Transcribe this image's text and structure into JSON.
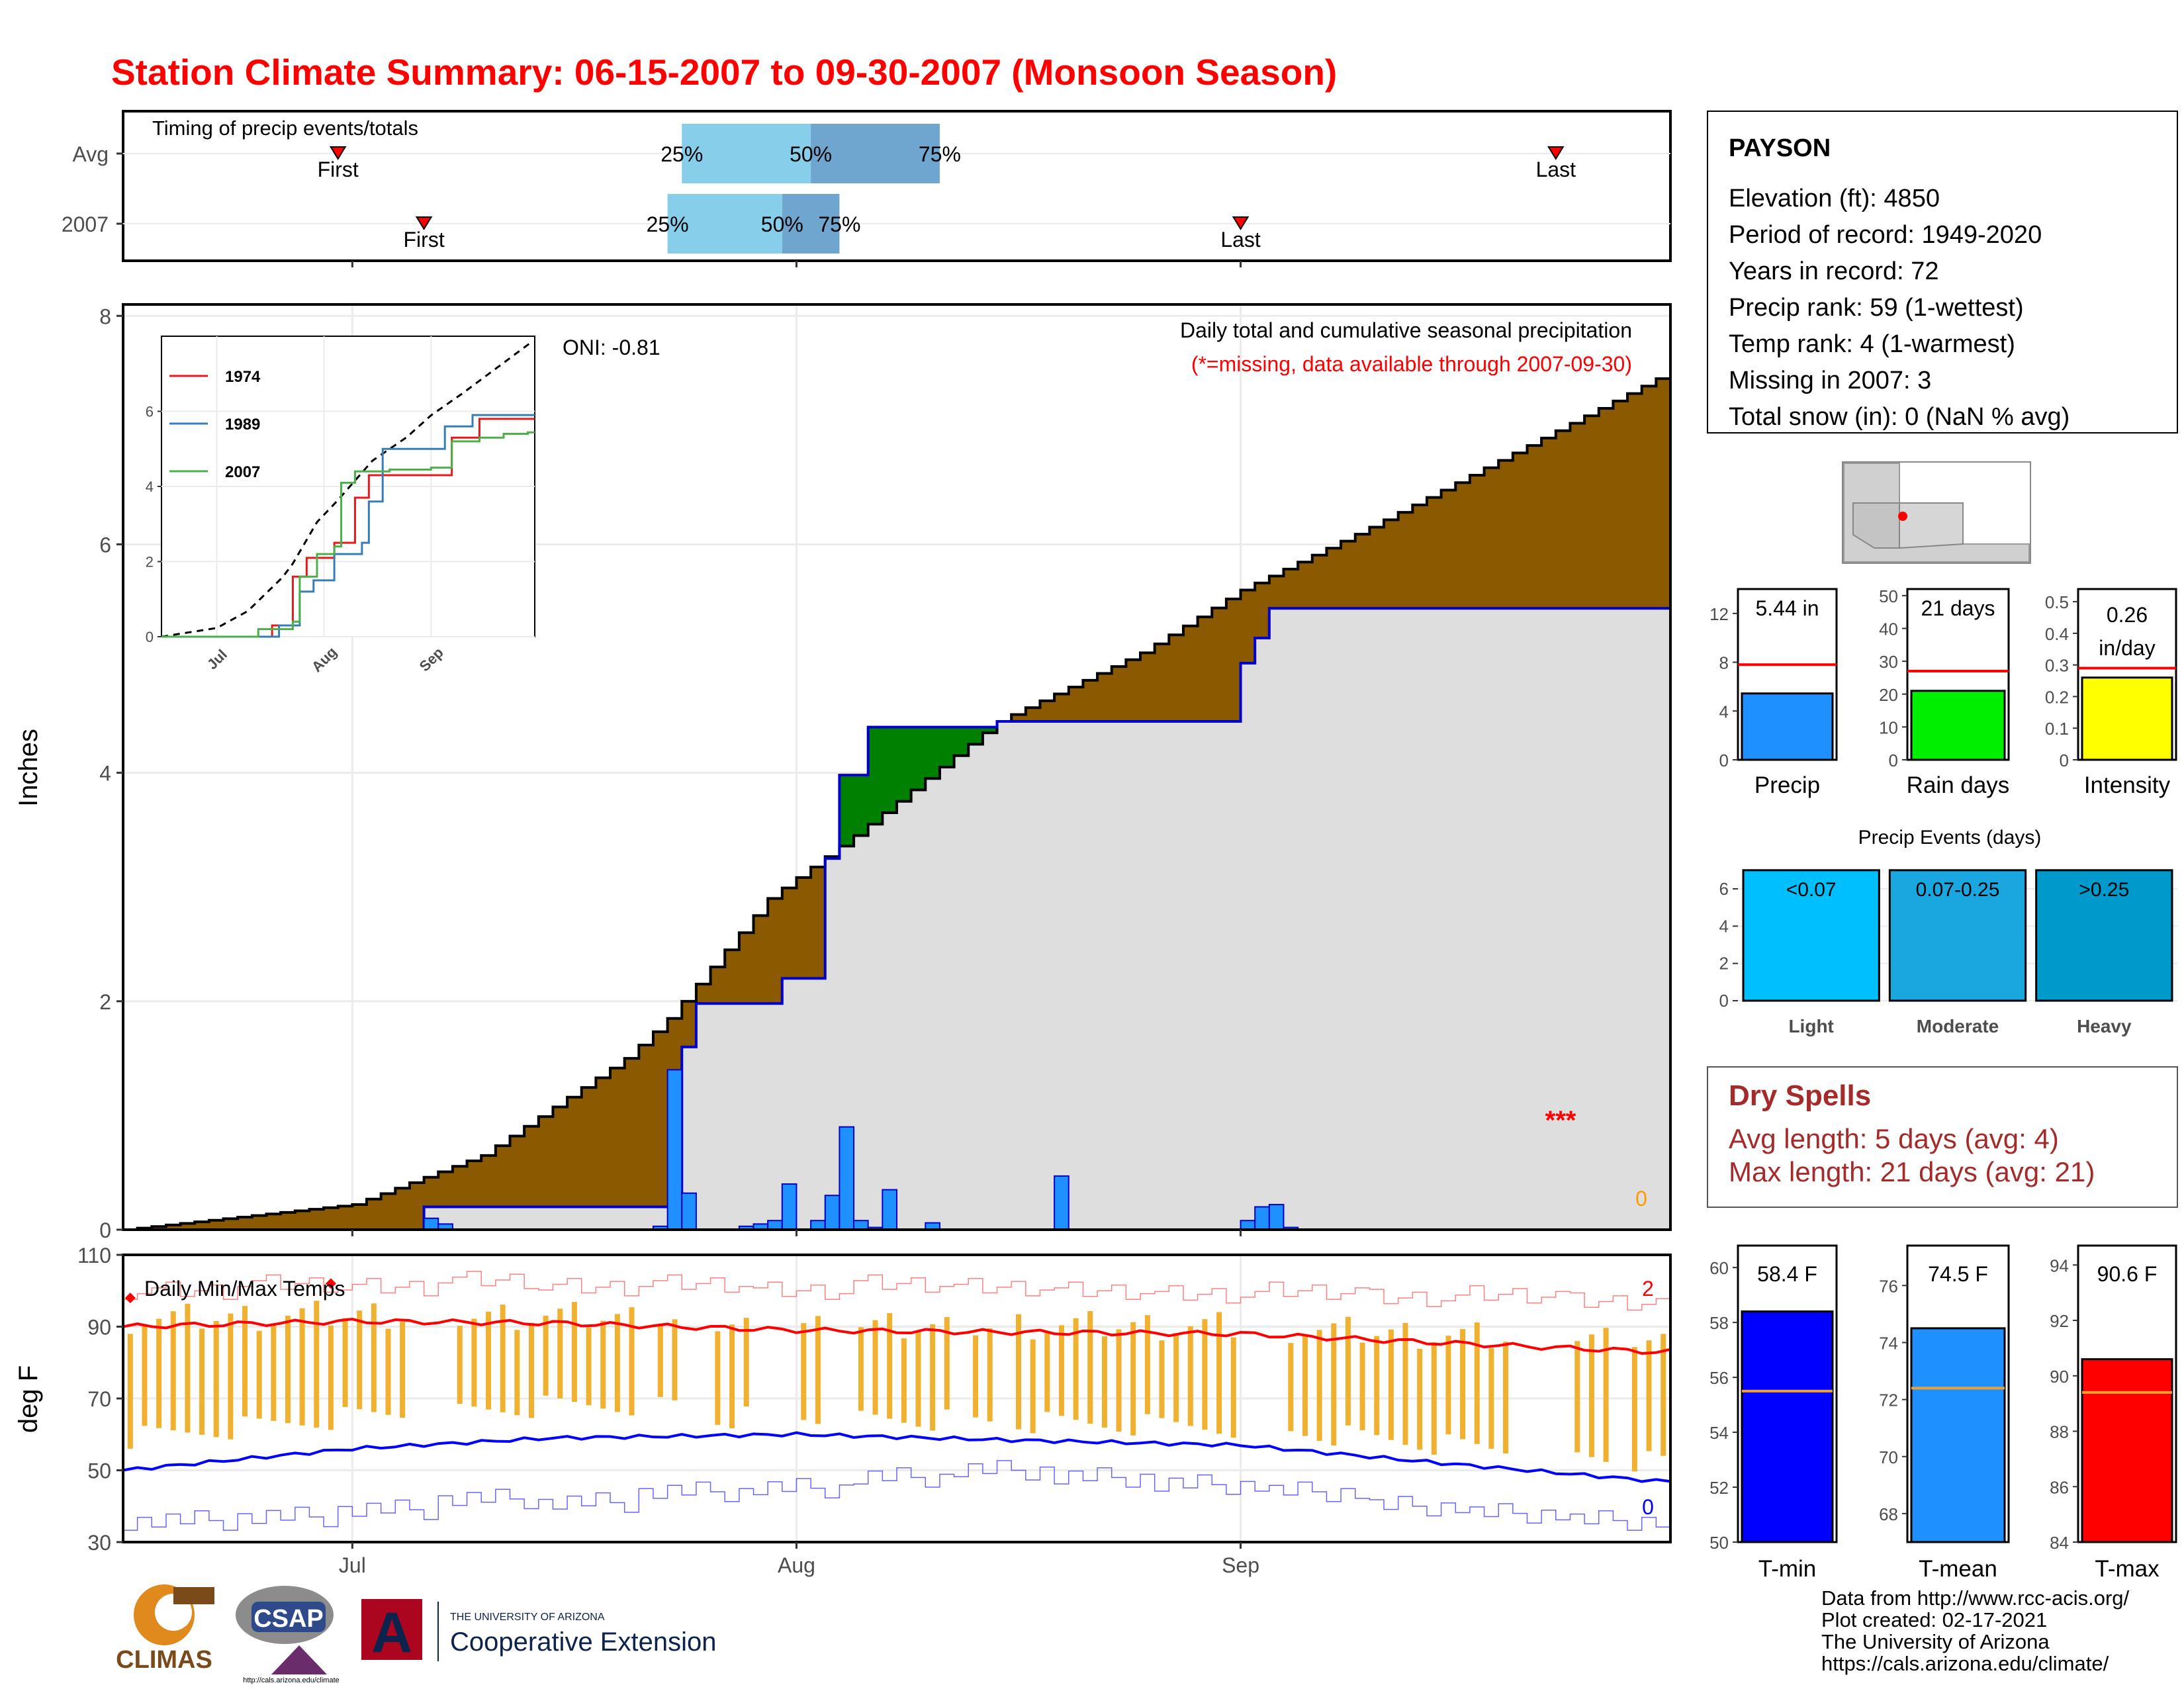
{
  "title": "Station Climate Summary: 06-15-2007 to 09-30-2007 (Monsoon Season)",
  "timing": {
    "title": "Timing of precip events/totals",
    "rows": [
      {
        "label": "Avg",
        "first": "06-30",
        "q25": "07-24",
        "q50": "08-02",
        "q75": "08-11",
        "last": "09-23"
      },
      {
        "label": "2007",
        "first": "07-06",
        "q25": "07-23",
        "q50": "07-31",
        "q75": "08-04",
        "last": "09-01"
      }
    ],
    "labels": {
      "first": "First",
      "last": "Last",
      "q25": "25%",
      "q50": "50%",
      "q75": "75%"
    }
  },
  "station": {
    "name": "PAYSON",
    "lines": [
      "Elevation (ft): 4850",
      "Period of record: 1949-2020",
      "Years in record: 72",
      "Precip rank: 59 (1-wettest)",
      "Temp rank: 4 (1-warmest)",
      "Missing in 2007: 3",
      "Total snow (in): 0 (NaN % avg)"
    ]
  },
  "precip_panel": {
    "ylabel": "Inches",
    "yticks": [
      0,
      2,
      4,
      6,
      8
    ],
    "ylim": [
      0,
      8.1
    ],
    "subtitle": "Daily total and cumulative seasonal precipitation",
    "missing_note": "(*=missing, data available through 2007-09-30)",
    "oni": "ONI: -0.81",
    "missing_marks": "***",
    "snow_count": "0",
    "colors": {
      "avg_fill": "#8b5a00",
      "above_fill": "#008000",
      "obs_fill": "#dedede",
      "obs_line": "#0000cc",
      "daily_bar": "#1e90ff"
    }
  },
  "inset": {
    "yticks": [
      0,
      2,
      4,
      6
    ],
    "xticks": [
      "Jul",
      "Aug",
      "Sep"
    ],
    "legend": [
      {
        "name": "1974",
        "color": "#e41a1c"
      },
      {
        "name": "1989",
        "color": "#377eb8"
      },
      {
        "name": "2007",
        "color": "#4daf4a"
      }
    ]
  },
  "temp_panel": {
    "title": "Daily Min/Max Temps",
    "ylabel": "deg F",
    "yticks": [
      30,
      50,
      70,
      90,
      110
    ],
    "ylim": [
      30,
      110
    ],
    "record_high_count": "2",
    "record_low_count": "0",
    "xticks": [
      "Jul",
      "Aug",
      "Sep"
    ]
  },
  "bars_precip": [
    {
      "label": "Precip",
      "value": 5.44,
      "text": "5.44 in",
      "avg": 7.8,
      "yticks": [
        0,
        4,
        8,
        12
      ],
      "ymax": 14,
      "color": "#1e90ff"
    },
    {
      "label": "Rain days",
      "value": 21,
      "text": "21 days",
      "avg": 27,
      "yticks": [
        0,
        10,
        20,
        30,
        40,
        50
      ],
      "ymax": 52,
      "color": "#00ee00"
    },
    {
      "label": "Intensity",
      "value": 0.26,
      "text": "0.26 in/day",
      "text_lines": [
        "0.26",
        "in/day"
      ],
      "avg": 0.29,
      "yticks": [
        0.0,
        0.1,
        0.2,
        0.3,
        0.4,
        0.5
      ],
      "ymax": 0.54,
      "color": "#ffff00"
    }
  ],
  "events": {
    "title": "Precip Events (days)",
    "yticks": [
      0,
      2,
      4,
      6
    ],
    "ymax": 7.1,
    "categories": [
      {
        "label": "Light",
        "range": "<0.07",
        "value": 7,
        "color": "#00bfff"
      },
      {
        "label": "Moderate",
        "range": "0.07-0.25",
        "value": 7,
        "color": "#1aa6de"
      },
      {
        "label": "Heavy",
        "range": ">0.25",
        "value": 7,
        "color": "#0099cc"
      }
    ]
  },
  "dry_spells": {
    "title": "Dry Spells",
    "avg_line": "Avg length: 5 days (avg: 4)",
    "max_line": "Max length: 21 days (avg: 21)"
  },
  "bars_temp": [
    {
      "label": "T-min",
      "value": 58.4,
      "text": "58.4 F",
      "avg": 55.5,
      "ylim": [
        50,
        60.8
      ],
      "yticks": [
        50,
        52,
        54,
        56,
        58,
        60
      ],
      "color": "#0000ff"
    },
    {
      "label": "T-mean",
      "value": 74.5,
      "text": "74.5 F",
      "avg": 72.4,
      "ylim": [
        67,
        77.4
      ],
      "yticks": [
        68,
        70,
        72,
        74,
        76
      ],
      "color": "#1e90ff"
    },
    {
      "label": "T-max",
      "value": 90.6,
      "text": "90.6 F",
      "avg": 89.4,
      "ylim": [
        84,
        94.7
      ],
      "yticks": [
        84,
        86,
        88,
        90,
        92,
        94
      ],
      "color": "#ff0000"
    }
  ],
  "footer": {
    "lines": [
      "Data from http://www.rcc-acis.org/",
      "Plot created: 02-17-2021",
      "The University of Arizona",
      "https://cals.arizona.edu/climate/"
    ],
    "logos": {
      "climas": "CLIMAS",
      "csap": "CSAP",
      "csap_url": "http://cals.arizona.edu/climate",
      "ua_small": "THE UNIVERSITY OF ARIZONA",
      "ua_big": "Cooperative Extension",
      "ua_letter": "A"
    }
  },
  "chart_data": {
    "type": "area",
    "title": "Station Climate Summary: 06-15-2007 to 09-30-2007 (Monsoon Season)",
    "x_start": "2007-06-15",
    "x_end": "2007-09-30",
    "xticks": [
      "Jul",
      "Aug",
      "Sep"
    ],
    "ylabel": "Inches",
    "ylim": [
      0,
      8.1
    ],
    "series": [
      {
        "name": "Avg cumulative",
        "x": [
          "06-15",
          "07-01",
          "07-10",
          "07-20",
          "07-23",
          "07-30",
          "08-05",
          "08-15",
          "08-25",
          "09-01",
          "09-10",
          "09-20",
          "09-30"
        ],
        "values": [
          0.0,
          0.22,
          0.65,
          1.5,
          1.85,
          2.9,
          3.45,
          4.45,
          5.05,
          5.6,
          6.15,
          6.8,
          7.45
        ]
      },
      {
        "name": "2007 cumulative",
        "x": [
          "06-15",
          "07-05",
          "07-06",
          "07-23",
          "07-24",
          "07-25",
          "07-31",
          "08-03",
          "08-04",
          "08-06",
          "08-15",
          "09-01",
          "09-02",
          "09-03",
          "09-30"
        ],
        "values": [
          0.0,
          0.0,
          0.2,
          0.2,
          1.6,
          1.98,
          2.2,
          3.25,
          3.98,
          4.4,
          4.45,
          4.96,
          5.18,
          5.44,
          5.44
        ]
      },
      {
        "name": "2007 daily",
        "x": [
          "07-06",
          "07-07",
          "07-22",
          "07-23",
          "07-24",
          "07-28",
          "07-29",
          "07-30",
          "07-31",
          "08-02",
          "08-03",
          "08-04",
          "08-05",
          "08-06",
          "08-07",
          "08-10",
          "08-19",
          "09-01",
          "09-02",
          "09-03",
          "09-04"
        ],
        "values": [
          0.1,
          0.05,
          0.03,
          1.4,
          0.32,
          0.03,
          0.05,
          0.08,
          0.4,
          0.08,
          0.3,
          0.9,
          0.08,
          0.02,
          0.35,
          0.06,
          0.47,
          0.08,
          0.2,
          0.22,
          0.02
        ]
      },
      {
        "name": "Avg Tmax",
        "x": [
          "06-15",
          "07-01",
          "07-15",
          "08-01",
          "08-15",
          "09-01",
          "09-15",
          "09-30"
        ],
        "values": [
          90,
          91.5,
          91,
          89,
          88.5,
          88,
          85.5,
          83
        ]
      },
      {
        "name": "Avg Tmin",
        "x": [
          "06-15",
          "07-01",
          "07-15",
          "08-01",
          "08-15",
          "09-01",
          "09-15",
          "09-30"
        ],
        "values": [
          50,
          56,
          59,
          60,
          58.5,
          57,
          52,
          47
        ]
      }
    ]
  }
}
